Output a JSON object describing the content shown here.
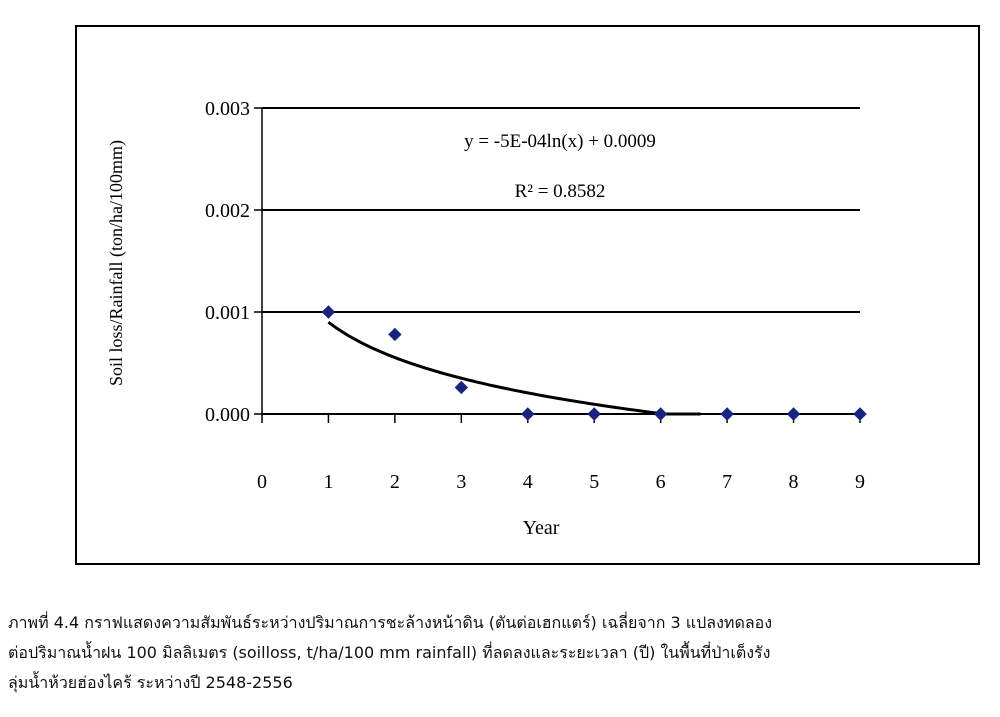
{
  "chart_data": {
    "type": "scatter",
    "title": "",
    "xlabel": "Year",
    "ylabel": "Soil loss/Rainfall (ton/ha/100mm)",
    "xlim": [
      0,
      9
    ],
    "ylim": [
      0,
      0.003
    ],
    "x_ticks": [
      "0",
      "1",
      "2",
      "3",
      "4",
      "5",
      "6",
      "7",
      "8",
      "9"
    ],
    "y_ticks": [
      "0.000",
      "0.001",
      "0.002",
      "0.003"
    ],
    "grid": "horizontal",
    "marker": "diamond",
    "marker_color": "#1a237e",
    "points": [
      {
        "x": 1,
        "y": 0.001
      },
      {
        "x": 2,
        "y": 0.00078
      },
      {
        "x": 3,
        "y": 0.00026
      },
      {
        "x": 4,
        "y": 0.0
      },
      {
        "x": 5,
        "y": 0.0
      },
      {
        "x": 6,
        "y": 0.0
      },
      {
        "x": 7,
        "y": 0.0
      },
      {
        "x": 8,
        "y": 0.0
      },
      {
        "x": 9,
        "y": 0.0
      }
    ],
    "trendline": {
      "type": "log",
      "a": -0.0005,
      "b": 0.0009,
      "x_range": [
        1,
        6.6
      ],
      "equation": "y = -5E-04ln(x) + 0.0009",
      "r2": "R² = 0.8582"
    }
  },
  "caption": {
    "line1": "ภาพที่ 4.4  กราฟแสดงความสัมพันธ์ระหว่างปริมาณการชะล้างหน้าดิน (ตันต่อเฮกแตร์) เฉลี่ยจาก 3 แปลงทดลอง",
    "line2": "ต่อปริมาณน้ำฝน 100 มิลลิเมตร (soilloss, t/ha/100 mm rainfall) ที่ลดลงและระยะเวลา (ปี) ในพื้นที่ป่าเต็งรัง",
    "line3": "ลุ่มน้ำห้วยฮ่องไคร้ ระหว่างปี 2548-2556"
  }
}
